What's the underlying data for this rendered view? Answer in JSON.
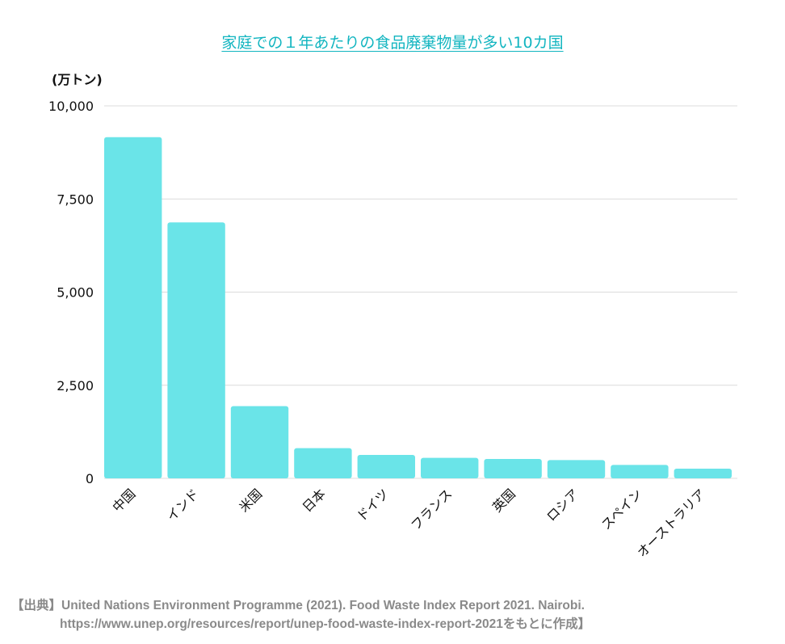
{
  "chart_data": {
    "type": "bar",
    "title": "家庭での１年あたりの食品廃棄物量が多い10カ国",
    "ylabel": "(万トン)",
    "xlabel": "",
    "categories": [
      "中国",
      "インド",
      "米国",
      "日本",
      "ドイツ",
      "フランス",
      "英国",
      "ロシア",
      "スペイン",
      "オーストラリア"
    ],
    "values": [
      9160,
      6870,
      1940,
      810,
      630,
      550,
      520,
      490,
      360,
      260
    ],
    "ylim": [
      0,
      10000
    ],
    "yticks": [
      0,
      2500,
      5000,
      7500,
      10000
    ],
    "ytick_labels": [
      "0",
      "2,500",
      "5,000",
      "7,500",
      "10,000"
    ],
    "grid": true,
    "legend": "none",
    "bar_color": "#6ae4e8",
    "title_color": "#12b5c0"
  },
  "source": {
    "line1": "【出典】United Nations Environment Programme (2021). Food Waste Index Report 2021. Nairobi.",
    "line2": "https://www.unep.org/resources/report/unep-food-waste-index-report-2021をもとに作成】"
  }
}
